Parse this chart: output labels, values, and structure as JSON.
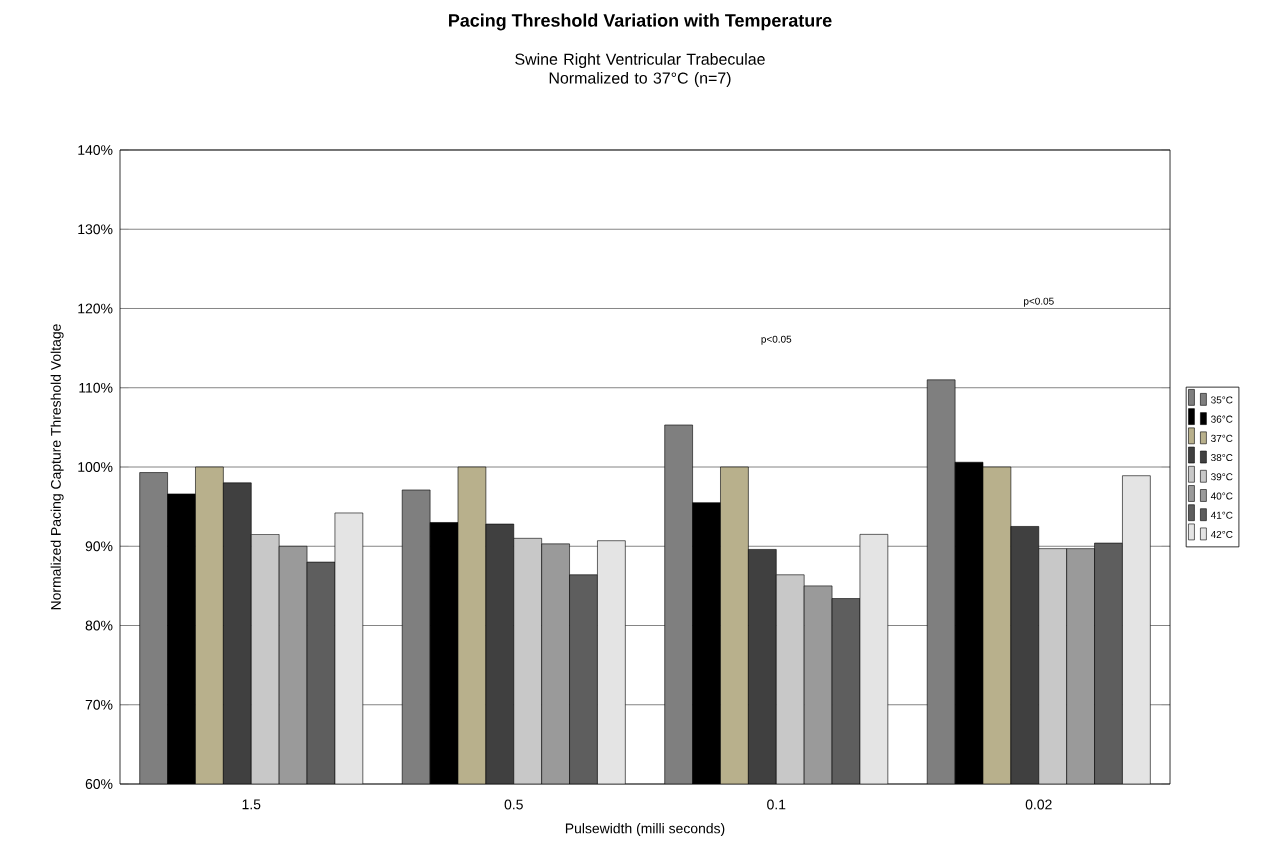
{
  "chart_data": {
    "type": "bar",
    "title": "Pacing Threshold Variation with Temperature",
    "subtitle": "Swine Right Ventricular Trabeculae\nNormalized to 37°C (n=7)",
    "xlabel": "Pulsewidth (milli seconds)",
    "ylabel": "Normalized Pacing Capture Threshold Voltage",
    "categories": [
      "1.5",
      "0.5",
      "0.1",
      "0.02"
    ],
    "series": [
      {
        "name": "35°C",
        "color": "#7f7f7f",
        "values": [
          99.3,
          97.1,
          105.3,
          111
        ]
      },
      {
        "name": "36°C",
        "color": "#000000",
        "values": [
          96.6,
          93,
          95.5,
          100.6
        ]
      },
      {
        "name": "37°C",
        "color": "#b8b08c",
        "values": [
          100,
          100,
          100,
          100
        ]
      },
      {
        "name": "38°C",
        "color": "#404040",
        "values": [
          98,
          92.8,
          89.6,
          92.5
        ]
      },
      {
        "name": "39°C",
        "color": "#c8c8c8",
        "values": [
          91.5,
          91,
          86.4,
          89.7
        ]
      },
      {
        "name": "40°C",
        "color": "#9a9a9a",
        "values": [
          90,
          90.3,
          85,
          89.7
        ]
      },
      {
        "name": "41°C",
        "color": "#5e5e5e",
        "values": [
          88,
          86.4,
          83.4,
          90.4
        ]
      },
      {
        "name": "42°C",
        "color": "#e4e4e4",
        "values": [
          94.2,
          90.7,
          91.5,
          98.9
        ]
      }
    ],
    "ylim": [
      60,
      140
    ],
    "yticks": [
      {
        "value": 60,
        "label": "60%"
      },
      {
        "value": 70,
        "label": "70%"
      },
      {
        "value": 80,
        "label": "80%"
      },
      {
        "value": 90,
        "label": "90%"
      },
      {
        "value": 100,
        "label": "100%"
      },
      {
        "value": 110,
        "label": "110%"
      },
      {
        "value": 120,
        "label": "120%"
      },
      {
        "value": 130,
        "label": "130%"
      },
      {
        "value": 140,
        "label": "140%"
      }
    ],
    "grid": "y",
    "legend": "right",
    "annotations": [
      "p<0.05",
      "p<0.05"
    ]
  }
}
